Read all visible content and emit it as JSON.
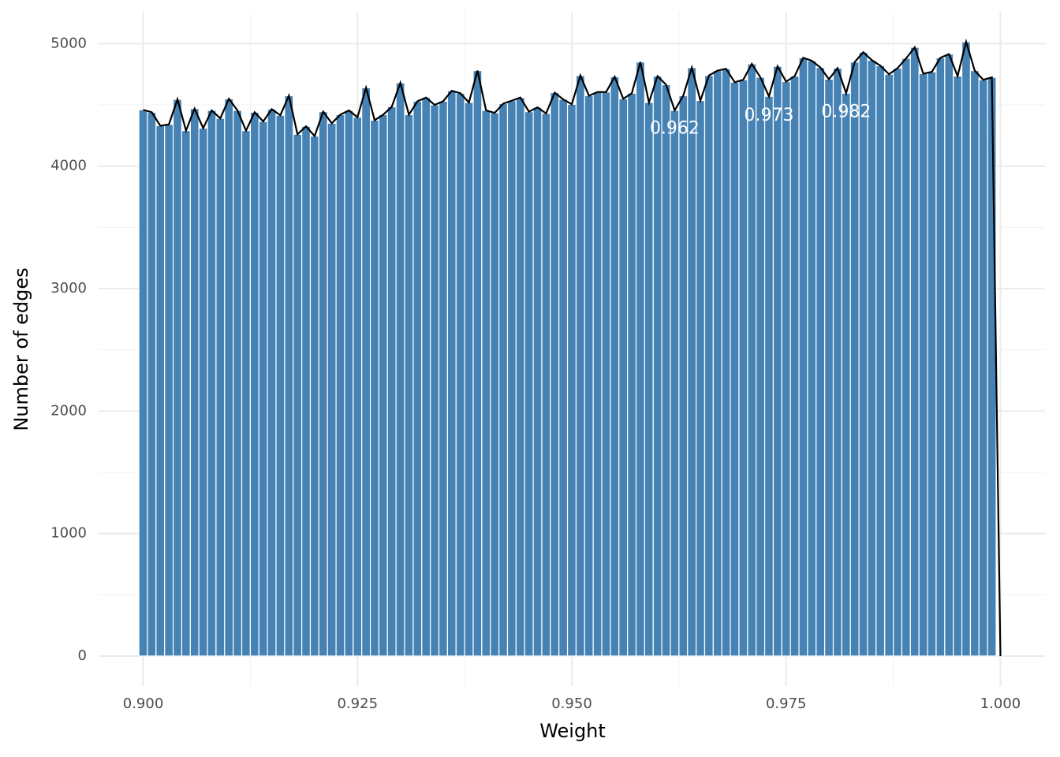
{
  "chart_data": {
    "type": "histogram",
    "xlabel": "Weight",
    "ylabel": "Number of edges",
    "bins": [
      0.8995,
      0.9005,
      0.9015,
      0.9025,
      0.9035,
      0.9045,
      0.9055,
      0.9065,
      0.9075,
      0.9085,
      0.9095,
      0.9105,
      0.9115,
      0.9125,
      0.9135,
      0.9145,
      0.9155,
      0.9165,
      0.9175,
      0.9185,
      0.9195,
      0.9205,
      0.9215,
      0.9225,
      0.9235,
      0.9245,
      0.9255,
      0.9265,
      0.9275,
      0.9285,
      0.9295,
      0.9305,
      0.9315,
      0.9325,
      0.9335,
      0.9345,
      0.9355,
      0.9365,
      0.9375,
      0.9385,
      0.9395,
      0.9405,
      0.9415,
      0.9425,
      0.9435,
      0.9445,
      0.9455,
      0.9465,
      0.9475,
      0.9485,
      0.9495,
      0.9505,
      0.9515,
      0.9525,
      0.9535,
      0.9545,
      0.9555,
      0.9565,
      0.9575,
      0.9585,
      0.9595,
      0.9605,
      0.9615,
      0.9625,
      0.9635,
      0.9645,
      0.9655,
      0.9665,
      0.9675,
      0.9685,
      0.9695,
      0.9705,
      0.9715,
      0.9725,
      0.9735,
      0.9745,
      0.9755,
      0.9765,
      0.9775,
      0.9785,
      0.9795,
      0.9805,
      0.9815,
      0.9825,
      0.9835,
      0.9845,
      0.9855,
      0.9865,
      0.9875,
      0.9885,
      0.9895,
      0.9905,
      0.9915,
      0.9925,
      0.9935,
      0.9945,
      0.9955,
      0.9965,
      0.9975,
      0.9985,
      0.9995,
      1.0005
    ],
    "values": [
      4460,
      4440,
      4330,
      4340,
      4545,
      4290,
      4470,
      4310,
      4455,
      4390,
      4550,
      4455,
      4290,
      4440,
      4365,
      4465,
      4415,
      4575,
      4260,
      4325,
      4245,
      4445,
      4350,
      4420,
      4455,
      4400,
      4640,
      4375,
      4420,
      4485,
      4680,
      4420,
      4530,
      4560,
      4500,
      4530,
      4615,
      4595,
      4520,
      4780,
      4455,
      4435,
      4510,
      4535,
      4560,
      4445,
      4480,
      4430,
      4600,
      4545,
      4505,
      4740,
      4575,
      4605,
      4605,
      4730,
      4550,
      4595,
      4850,
      4520,
      4735,
      4665,
      4455,
      4575,
      4805,
      4535,
      4740,
      4780,
      4795,
      4685,
      4705,
      4835,
      4725,
      4570,
      4815,
      4690,
      4735,
      4885,
      4860,
      4805,
      4710,
      4800,
      4595,
      4850,
      4930,
      4865,
      4820,
      4750,
      4800,
      4880,
      4970,
      4755,
      4770,
      4885,
      4915,
      4735,
      5015,
      4780,
      4705,
      4725,
      0
    ],
    "color": "#4682b4",
    "line_color": "#000000",
    "annotations": [
      {
        "text": "0.962",
        "x": 0.962,
        "y": 4305
      },
      {
        "text": "0.973",
        "x": 0.973,
        "y": 4410
      },
      {
        "text": "0.982",
        "x": 0.982,
        "y": 4440
      }
    ],
    "xlim": [
      0.8948,
      1.0052
    ],
    "ylim": [
      -245,
      5260
    ],
    "xticks": [
      {
        "value": 0.9,
        "label": "0.900"
      },
      {
        "value": 0.925,
        "label": "0.925"
      },
      {
        "value": 0.95,
        "label": "0.950"
      },
      {
        "value": 0.975,
        "label": "0.975"
      },
      {
        "value": 1.0,
        "label": "1.000"
      }
    ],
    "yticks": [
      0,
      1000,
      2000,
      3000,
      4000,
      5000
    ],
    "xminor": [
      0.9125,
      0.9375,
      0.9625,
      0.9875
    ],
    "yminor": [
      500,
      1500,
      2500,
      3500,
      4500
    ],
    "grid": true
  }
}
